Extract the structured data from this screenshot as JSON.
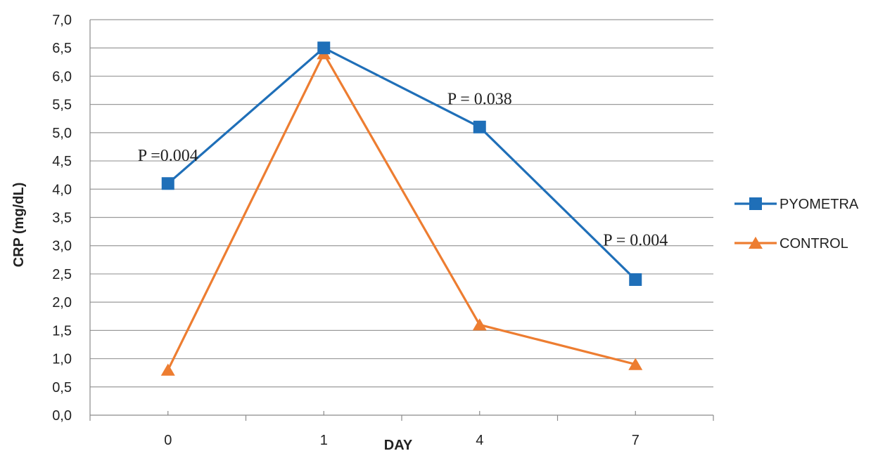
{
  "chart_data": {
    "type": "line",
    "title": "",
    "xlabel": "DAY",
    "ylabel": "CRP (mg/dL)",
    "categories": [
      "0",
      "1",
      "4",
      "7"
    ],
    "y_ticks": [
      "0,0",
      "0,5",
      "1,0",
      "1,5",
      "2,0",
      "2,5",
      "3,0",
      "3,5",
      "4,0",
      "4,5",
      "5,0",
      "5,5",
      "6,0",
      "6,5",
      "7,0"
    ],
    "ylim": [
      0,
      7
    ],
    "grid": true,
    "legend": "right",
    "series": [
      {
        "name": "PYOMETRA",
        "values": [
          4.1,
          6.5,
          5.1,
          2.4
        ],
        "color": "#1f6fb8",
        "marker": "square"
      },
      {
        "name": "CONTROL",
        "values": [
          0.8,
          6.4,
          1.6,
          0.9
        ],
        "color": "#ed7d31",
        "marker": "triangle"
      }
    ],
    "annotations": [
      {
        "text": "P =0.004",
        "category": "0",
        "y": 4.6
      },
      {
        "text": "P = 0.038",
        "category": "4",
        "y": 5.6
      },
      {
        "text": "P = 0.004",
        "category": "7",
        "y": 3.1
      }
    ]
  }
}
